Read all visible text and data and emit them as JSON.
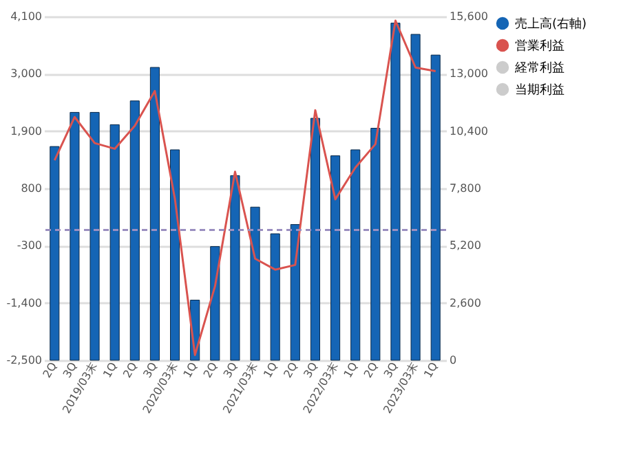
{
  "chart_data": {
    "type": "bar",
    "categories": [
      "2Q",
      "3Q",
      "2019/03末",
      "1Q",
      "2Q",
      "3Q",
      "2020/03末",
      "1Q",
      "2Q",
      "3Q",
      "2021/03末",
      "1Q",
      "2Q",
      "3Q",
      "2022/03末",
      "1Q",
      "2Q",
      "3Q",
      "2023/03末",
      "1Q"
    ],
    "series": [
      {
        "name": "売上高(右軸)",
        "axis": "y2",
        "color": "#1565b5",
        "values": [
          9700,
          11250,
          11250,
          10690,
          11770,
          13290,
          9550,
          2730,
          5160,
          8380,
          6950,
          5740,
          6160,
          10980,
          9280,
          9550,
          10530,
          15300,
          14790,
          13850
        ]
      },
      {
        "name": "営業利益",
        "type": "line",
        "color": "#d9534f",
        "values": [
          1340,
          2170,
          1670,
          1560,
          2000,
          2670,
          600,
          -2400,
          -1080,
          1120,
          -550,
          -760,
          -670,
          2300,
          590,
          1200,
          1650,
          4020,
          3120,
          3050
        ]
      },
      {
        "name": "経常利益",
        "type": "line",
        "color": "#cccccc",
        "values": [
          null,
          null,
          null,
          null,
          null,
          null,
          null,
          null,
          null,
          null,
          null,
          null,
          null,
          null,
          null,
          null,
          null,
          null,
          null,
          null
        ]
      },
      {
        "name": "当期利益",
        "type": "line",
        "color": "#cccccc",
        "values": [
          null,
          null,
          null,
          null,
          null,
          null,
          null,
          null,
          null,
          null,
          null,
          null,
          null,
          null,
          null,
          null,
          null,
          null,
          null,
          null
        ]
      }
    ],
    "ylim": [
      -2500,
      4100
    ],
    "yticks": [
      {
        "value": -2500,
        "label": "-2,500"
      },
      {
        "value": -1400,
        "label": "-1,400"
      },
      {
        "value": -300,
        "label": "-300"
      },
      800,
      {
        "value": 1900,
        "label": "1,900"
      },
      {
        "value": 3000,
        "label": "3,000"
      },
      {
        "value": 4100,
        "label": "4,100"
      }
    ],
    "y2lim": [
      0,
      15600
    ],
    "y2ticks": [
      0,
      {
        "value": 2600,
        "label": "2,600"
      },
      {
        "value": 5200,
        "label": "5,200"
      },
      {
        "value": 7800,
        "label": "7,800"
      },
      {
        "value": 10400,
        "label": "10,400"
      },
      {
        "value": 13000,
        "label": "13,000"
      },
      {
        "value": 15600,
        "label": "15,600"
      }
    ],
    "ref_lines": [
      {
        "axis": "y",
        "value": 0,
        "color": "#9b8fc0",
        "line_style": "dashed"
      }
    ],
    "grid": "y",
    "legend": "right"
  }
}
